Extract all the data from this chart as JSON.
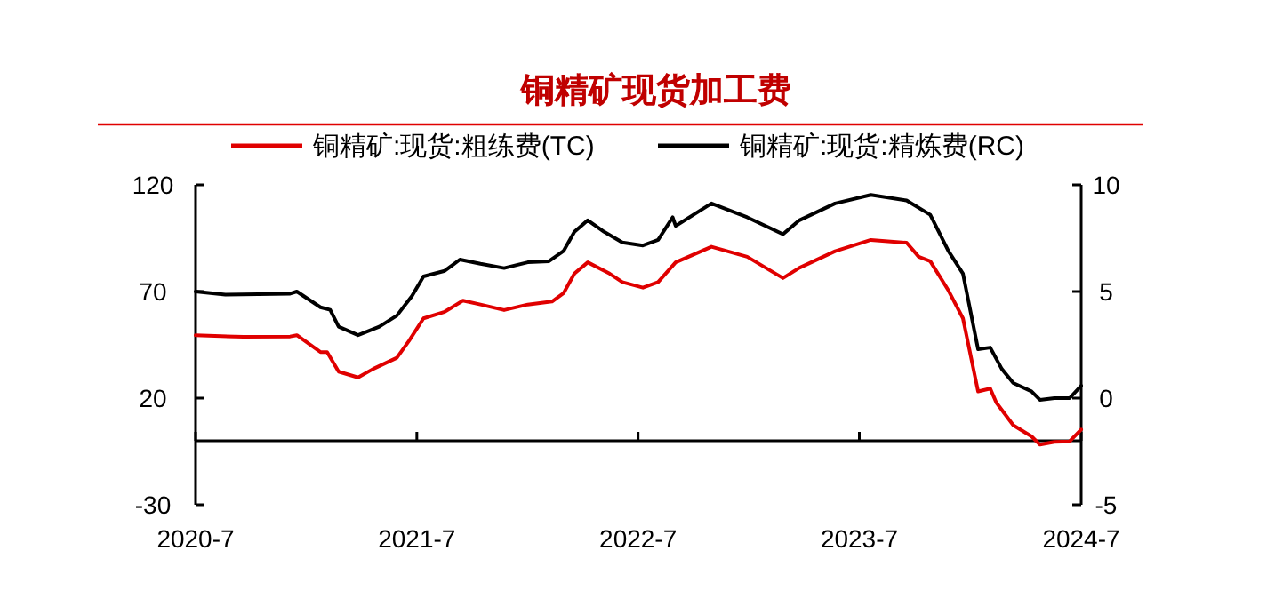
{
  "chart_data": {
    "type": "line",
    "title": "铜精矿现货加工费",
    "xlim": [
      "2020-07-01",
      "2024-07-01"
    ],
    "xticks": [
      {
        "value": "2020-07-01",
        "label": "2020-7"
      },
      {
        "value": "2021-07-01",
        "label": "2021-7"
      },
      {
        "value": "2022-07-01",
        "label": "2022-7"
      },
      {
        "value": "2023-07-01",
        "label": "2023-7"
      },
      {
        "value": "2024-07-01",
        "label": "2024-7"
      }
    ],
    "ylim": [
      -30,
      120
    ],
    "yticks": [
      -30,
      20,
      70,
      120
    ],
    "y2lim": [
      -5,
      10
    ],
    "y2ticks": [
      -5,
      0,
      5,
      10
    ],
    "legend": "top",
    "grid": false,
    "series": [
      {
        "name": "铜精矿:现货:粗练费(TC)",
        "color": "#e00000",
        "x": [
          "2020-07-01",
          "2020-09-18",
          "2020-12-04",
          "2020-12-15",
          "2021-01-23",
          "2021-02-03",
          "2021-02-22",
          "2021-03-26",
          "2021-04-20",
          "2021-05-29",
          "2021-06-18",
          "2021-07-12",
          "2021-08-16",
          "2021-09-15",
          "2021-10-14",
          "2021-11-22",
          "2021-12-31",
          "2022-02-09",
          "2022-02-28",
          "2022-03-18",
          "2022-04-09",
          "2022-05-15",
          "2022-06-05",
          "2022-07-09",
          "2022-08-03",
          "2022-09-01",
          "2022-10-30",
          "2022-12-28",
          "2023-02-25",
          "2023-03-24",
          "2023-05-22",
          "2023-07-20",
          "2023-09-17",
          "2023-10-07",
          "2023-10-26",
          "2023-11-25",
          "2023-12-19",
          "2024-01-13",
          "2024-02-02",
          "2024-02-12",
          "2024-03-11",
          "2024-04-10",
          "2024-04-24",
          "2024-05-18",
          "2024-06-12",
          "2024-07-01"
        ],
        "values": [
          49.5,
          48.7,
          48.9,
          49.5,
          41.6,
          41.6,
          32.4,
          29.7,
          33.7,
          38.9,
          46.8,
          57.4,
          60.5,
          65.7,
          63.9,
          61.3,
          63.9,
          65.3,
          69.2,
          78.4,
          83.7,
          78.4,
          74.4,
          71.8,
          74.4,
          83.7,
          91.0,
          86.3,
          76.3,
          81.1,
          88.9,
          94.2,
          92.9,
          86.3,
          84.2,
          70.5,
          57.4,
          23.1,
          24.5,
          17.9,
          7.3,
          2.1,
          -1.8,
          -0.5,
          -0.3,
          5.3
        ]
      },
      {
        "name": "铜精矿:现货:精炼费(RC)",
        "color": "#000000",
        "axis": "y2",
        "x": [
          "2020-07-01",
          "2020-08-19",
          "2020-12-04",
          "2020-12-15",
          "2021-01-23",
          "2021-02-08",
          "2021-02-22",
          "2021-03-26",
          "2021-04-30",
          "2021-05-29",
          "2021-06-23",
          "2021-07-12",
          "2021-08-16",
          "2021-09-10",
          "2021-10-14",
          "2021-11-22",
          "2021-12-31",
          "2022-02-04",
          "2022-02-28",
          "2022-03-18",
          "2022-04-09",
          "2022-05-06",
          "2022-06-05",
          "2022-07-09",
          "2022-08-03",
          "2022-08-27",
          "2022-09-01",
          "2022-10-30",
          "2022-12-28",
          "2023-02-25",
          "2023-03-24",
          "2023-05-22",
          "2023-07-20",
          "2023-09-17",
          "2023-10-26",
          "2023-11-25",
          "2023-12-19",
          "2024-01-13",
          "2024-02-02",
          "2024-02-21",
          "2024-03-11",
          "2024-04-10",
          "2024-04-24",
          "2024-05-18",
          "2024-06-12",
          "2024-07-01"
        ],
        "values": [
          5.0,
          4.85,
          4.9,
          5.0,
          4.26,
          4.14,
          3.35,
          2.95,
          3.35,
          3.87,
          4.79,
          5.71,
          5.97,
          6.5,
          6.3,
          6.1,
          6.37,
          6.42,
          6.9,
          7.8,
          8.34,
          7.8,
          7.3,
          7.16,
          7.42,
          8.48,
          8.08,
          9.13,
          8.48,
          7.69,
          8.34,
          9.13,
          9.53,
          9.27,
          8.6,
          6.9,
          5.84,
          2.29,
          2.37,
          1.37,
          0.71,
          0.32,
          -0.08,
          0.0,
          0.0,
          0.58
        ]
      }
    ]
  }
}
